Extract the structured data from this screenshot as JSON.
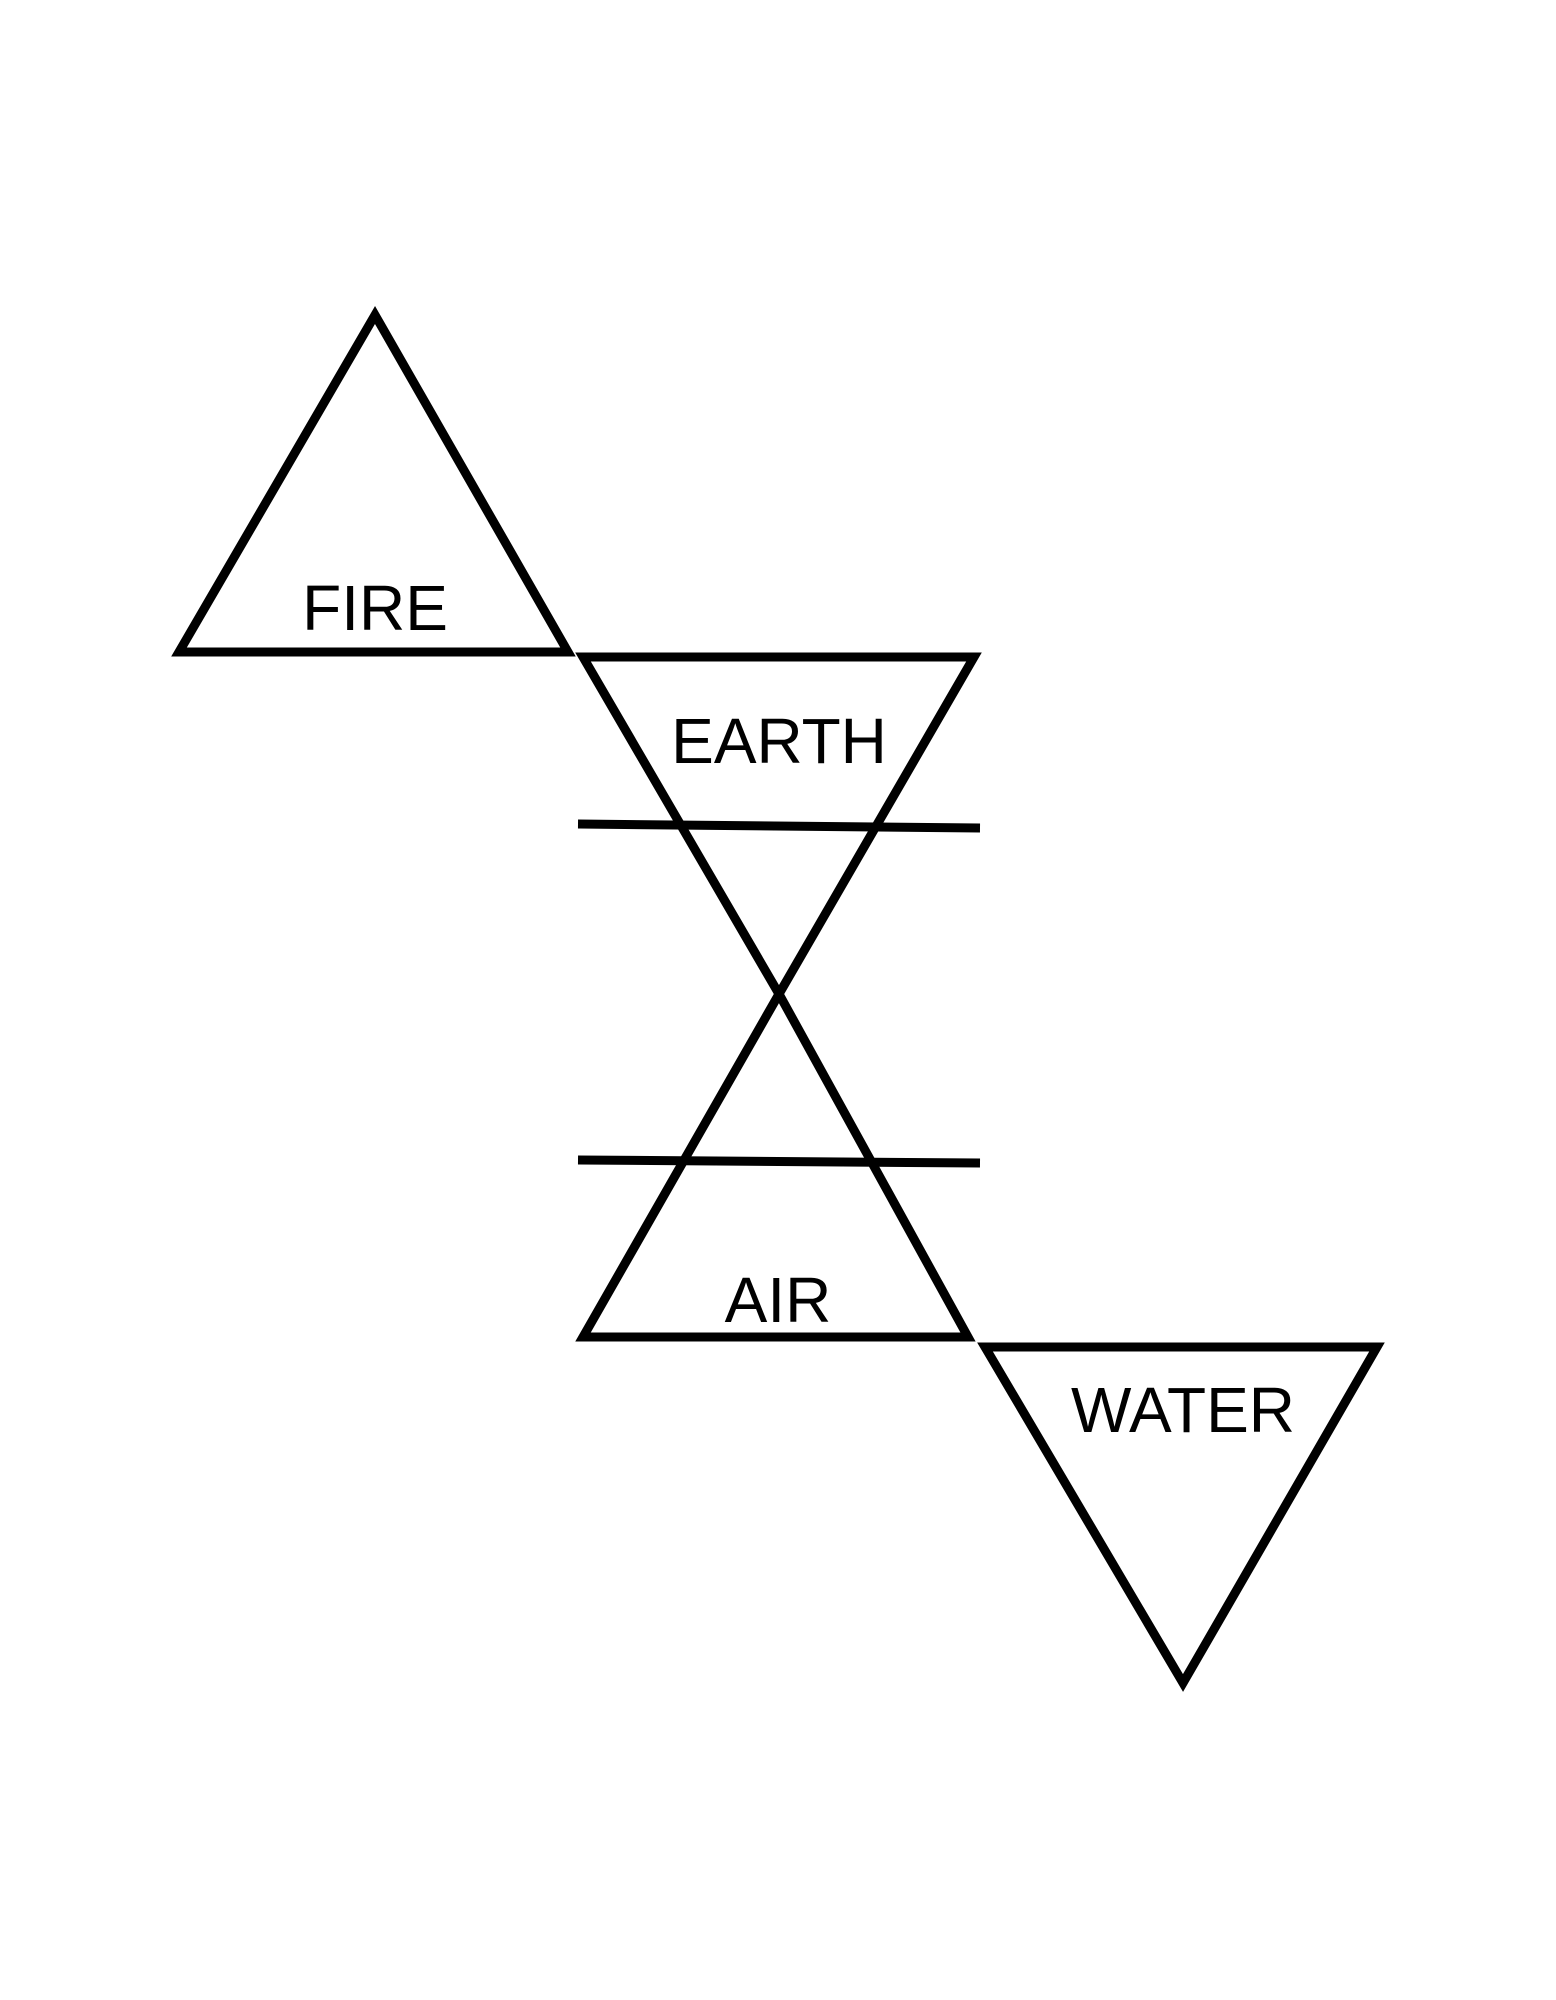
{
  "colors": {
    "background": "#ffffff",
    "stroke": "#000000",
    "text": "#000000"
  },
  "elements": {
    "fire": {
      "label": "FIRE",
      "symbol": "upward-triangle"
    },
    "earth": {
      "label": "EARTH",
      "symbol": "downward-triangle-with-bar"
    },
    "air": {
      "label": "AIR",
      "symbol": "upward-triangle-with-bar"
    },
    "water": {
      "label": "WATER",
      "symbol": "downward-triangle"
    }
  }
}
